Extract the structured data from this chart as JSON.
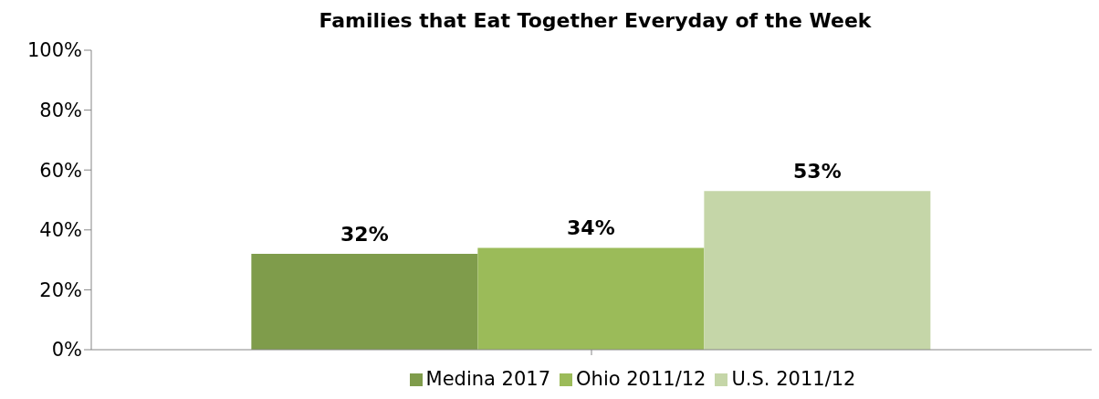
{
  "chart_data": {
    "type": "bar",
    "title": "Families that Eat Together Everyday of the Week",
    "categories": [
      null
    ],
    "series": [
      {
        "name": "Medina 2017",
        "color": "#7f9c4b",
        "values": [
          32
        ],
        "value_labels": [
          "32%"
        ]
      },
      {
        "name": "Ohio 2011/12",
        "color": "#9bbb59",
        "values": [
          34
        ],
        "value_labels": [
          "34%"
        ]
      },
      {
        "name": "U.S. 2011/12",
        "color": "#c5d6a8",
        "values": [
          53
        ],
        "value_labels": [
          "53%"
        ]
      }
    ],
    "ylim": [
      0,
      100
    ],
    "yticks": [
      {
        "value": 0,
        "label": "0%"
      },
      {
        "value": 20,
        "label": "20%"
      },
      {
        "value": 40,
        "label": "40%"
      },
      {
        "value": 60,
        "label": "60%"
      },
      {
        "value": 80,
        "label": "80%"
      },
      {
        "value": 100,
        "label": "100%"
      }
    ],
    "grid": false,
    "legend": "bottom"
  }
}
